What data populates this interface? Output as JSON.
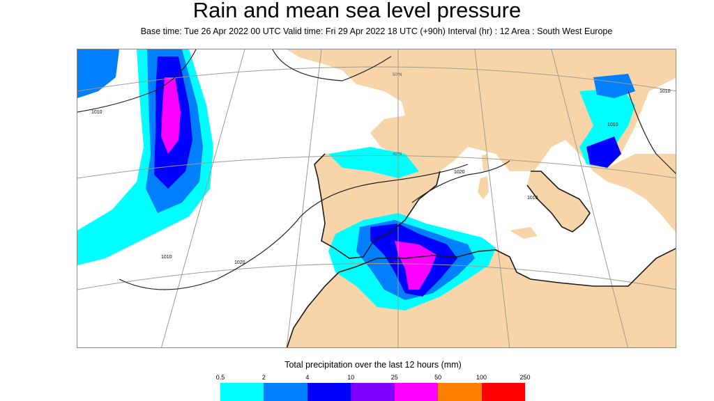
{
  "header": {
    "title": "Rain and mean sea level pressure",
    "subtitle": "Base time: Tue 26 Apr 2022 00 UTC Valid time: Fri 29 Apr 2022 18 UTC (+90h) Interval (hr) : 12 Area : South West Europe"
  },
  "map": {
    "isobar_labels": [
      "1010",
      "1010",
      "1020",
      "1020",
      "1010",
      "1010",
      "1010"
    ],
    "graticule_labels": [
      "50°N",
      "40°N",
      "30°N"
    ],
    "colors": {
      "land": "#f7d5a8",
      "sea": "#ffffff",
      "coast": "#1a1a1a",
      "graticule": "#a09a8c"
    }
  },
  "legend": {
    "title": "Total precipitation over the last 12 hours (mm)",
    "ticks": [
      "0.5",
      "2",
      "4",
      "10",
      "25",
      "50",
      "100",
      "250"
    ],
    "colors": [
      "#00ffff",
      "#0080ff",
      "#0000fe",
      "#8000ff",
      "#fe00fe",
      "#ff8000",
      "#ff0000"
    ]
  }
}
